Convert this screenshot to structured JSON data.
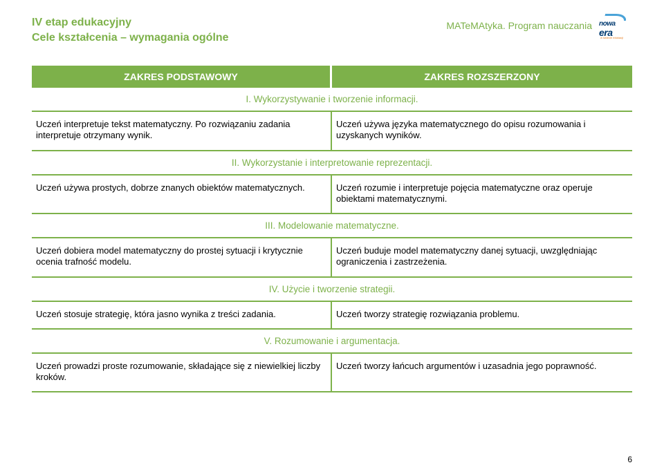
{
  "header": {
    "stage_line1": "IV etap edukacyjny",
    "stage_line2": "Cele kształcenia – wymagania ogólne",
    "program_label": "MATeMAtyka. Program nauczania",
    "logo_top": "nowa",
    "logo_bottom": "era",
    "logo_sub": "w świecie edukacji"
  },
  "columns": {
    "basic": "ZAKRES PODSTAWOWY",
    "extended": "ZAKRES ROZSZERZONY"
  },
  "sections": [
    {
      "title": "I.  Wykorzystywanie i tworzenie informacji.",
      "left": "Uczeń interpretuje tekst matematyczny. Po rozwiązaniu zadania interpretuje otrzymany wynik.",
      "right": "Uczeń używa języka matematycznego do opisu rozumowania i uzyskanych wyników."
    },
    {
      "title": "II. Wykorzystanie i interpretowanie reprezentacji.",
      "left": "Uczeń używa prostych, dobrze znanych obiektów matematycznych.",
      "right": "Uczeń rozumie i interpretuje pojęcia matematyczne oraz operuje obiektami matematycznymi."
    },
    {
      "title": "III. Modelowanie matematyczne.",
      "left": "Uczeń dobiera model matematyczny do prostej sytuacji i krytycznie ocenia trafność modelu.",
      "right": "Uczeń buduje model matematyczny danej sytuacji, uwzględniając ograniczenia i zastrzeżenia."
    },
    {
      "title": "IV. Użycie i tworzenie strategii.",
      "left": "Uczeń stosuje strategię, która jasno wynika z treści zadania.",
      "right": "Uczeń tworzy strategię rozwiązania problemu."
    },
    {
      "title": "V. Rozumowanie i argumentacja.",
      "left": "Uczeń prowadzi proste rozumowanie, składające się z niewielkiej liczby kroków.",
      "right": "Uczeń tworzy łańcuch argumentów i uzasadnia jego poprawność."
    }
  ],
  "page_number": "6",
  "colors": {
    "accent": "#7db14a",
    "text": "#000000",
    "program": "#7db14a"
  }
}
